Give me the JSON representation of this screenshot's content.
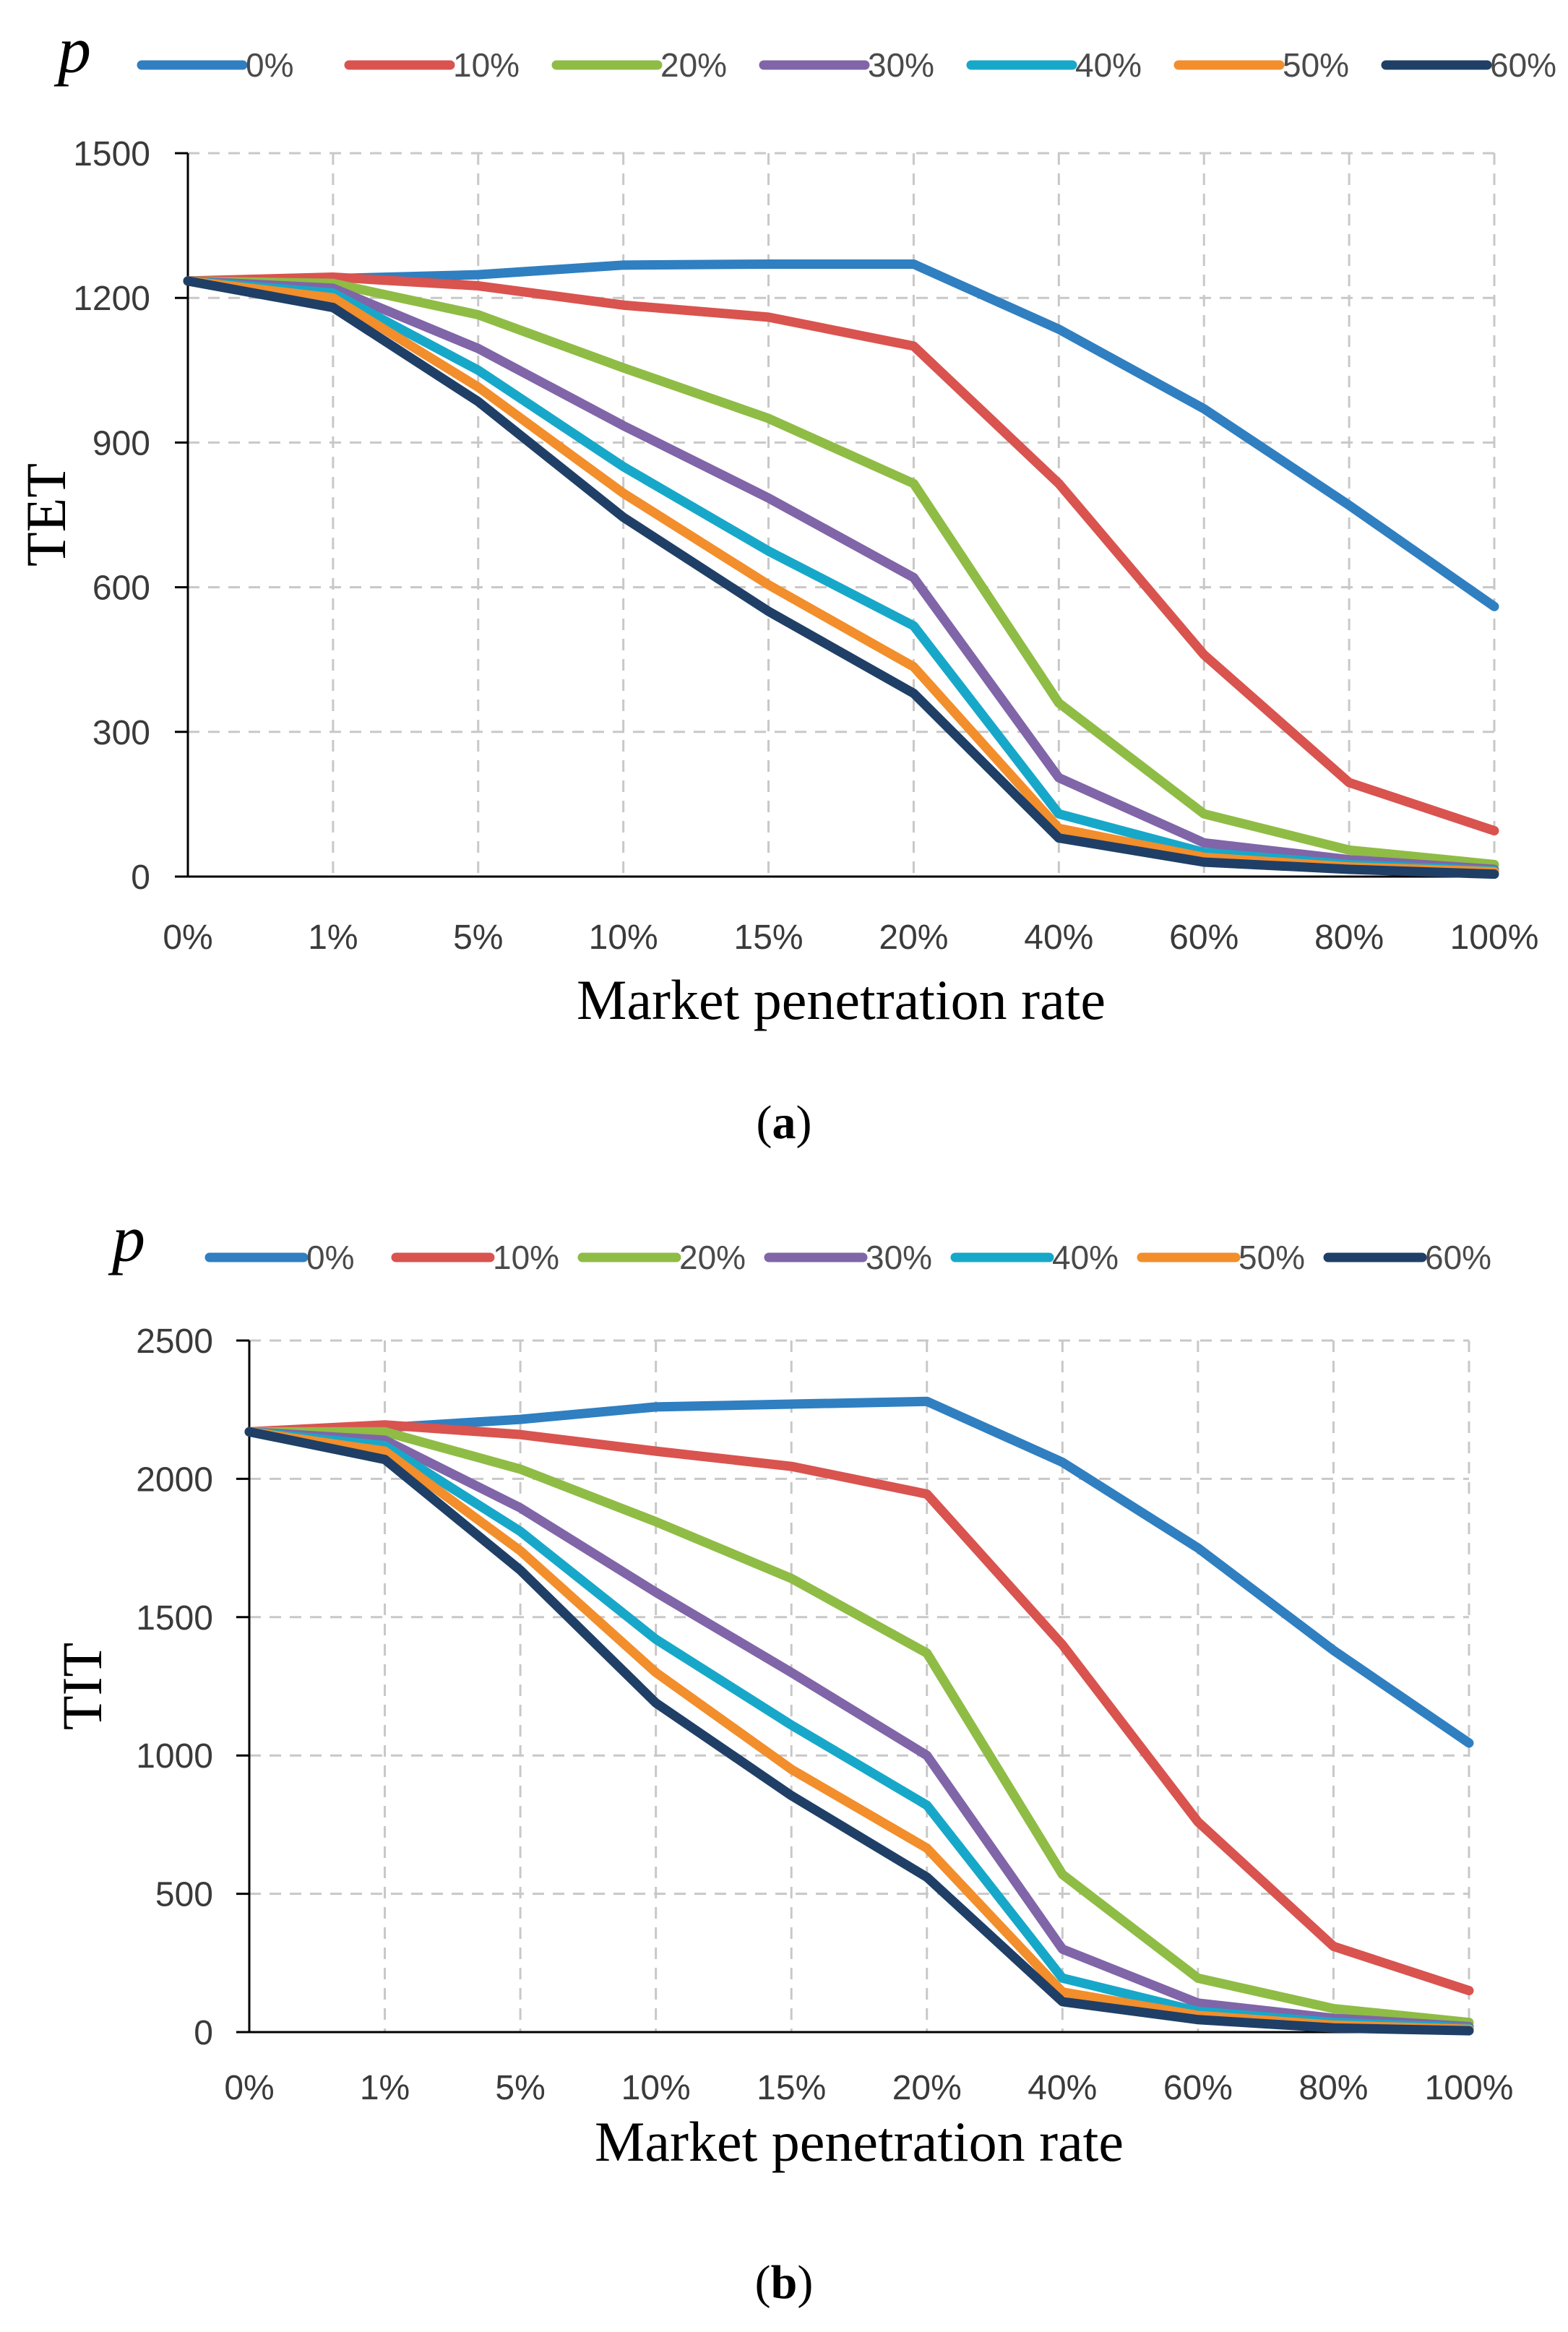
{
  "chart_data": [
    {
      "type": "line",
      "panel_caption": "a",
      "legend_title": "p",
      "xlabel": "Market penetration rate",
      "ylabel": "TET",
      "ylim": [
        0,
        1500
      ],
      "yticks": [
        0,
        300,
        600,
        900,
        1200,
        1500
      ],
      "categories": [
        "0%",
        "1%",
        "5%",
        "10%",
        "15%",
        "20%",
        "40%",
        "60%",
        "80%",
        "100%"
      ],
      "grid": true,
      "legend_position": "top",
      "series": [
        {
          "name": "0%",
          "color": "#2f7fc1",
          "values": [
            1235,
            1240,
            1248,
            1268,
            1270,
            1270,
            1135,
            970,
            770,
            560
          ]
        },
        {
          "name": "10%",
          "color": "#d9534f",
          "values": [
            1235,
            1243,
            1225,
            1185,
            1160,
            1100,
            815,
            460,
            195,
            95
          ]
        },
        {
          "name": "20%",
          "color": "#8fbc45",
          "values": [
            1235,
            1230,
            1165,
            1055,
            950,
            815,
            360,
            130,
            55,
            25
          ]
        },
        {
          "name": "30%",
          "color": "#8065a8",
          "values": [
            1235,
            1220,
            1095,
            935,
            785,
            620,
            205,
            70,
            35,
            15
          ]
        },
        {
          "name": "40%",
          "color": "#17a8c9",
          "values": [
            1235,
            1210,
            1050,
            850,
            675,
            520,
            130,
            50,
            25,
            12
          ]
        },
        {
          "name": "50%",
          "color": "#f28e2b",
          "values": [
            1235,
            1200,
            1015,
            795,
            605,
            435,
            100,
            40,
            20,
            10
          ]
        },
        {
          "name": "60%",
          "color": "#1f3f66",
          "values": [
            1235,
            1180,
            985,
            745,
            550,
            380,
            80,
            30,
            15,
            5
          ]
        }
      ]
    },
    {
      "type": "line",
      "panel_caption": "b",
      "legend_title": "p",
      "xlabel": "Market penetration rate",
      "ylabel": "TIT",
      "ylim": [
        0,
        2500
      ],
      "yticks": [
        0,
        500,
        1000,
        1500,
        2000,
        2500
      ],
      "categories": [
        "0%",
        "1%",
        "5%",
        "10%",
        "15%",
        "20%",
        "40%",
        "60%",
        "80%",
        "100%"
      ],
      "grid": true,
      "legend_position": "top",
      "series": [
        {
          "name": "0%",
          "color": "#2f7fc1",
          "values": [
            2170,
            2185,
            2215,
            2260,
            2270,
            2280,
            2060,
            1750,
            1380,
            1045
          ]
        },
        {
          "name": "10%",
          "color": "#d9534f",
          "values": [
            2170,
            2195,
            2160,
            2100,
            2045,
            1945,
            1400,
            760,
            310,
            150
          ]
        },
        {
          "name": "20%",
          "color": "#8fbc45",
          "values": [
            2170,
            2170,
            2035,
            1845,
            1640,
            1370,
            570,
            195,
            85,
            35
          ]
        },
        {
          "name": "30%",
          "color": "#8065a8",
          "values": [
            2170,
            2140,
            1895,
            1590,
            1300,
            1000,
            300,
            105,
            50,
            20
          ]
        },
        {
          "name": "40%",
          "color": "#17a8c9",
          "values": [
            2170,
            2120,
            1810,
            1420,
            1110,
            820,
            195,
            75,
            35,
            15
          ]
        },
        {
          "name": "50%",
          "color": "#f28e2b",
          "values": [
            2170,
            2100,
            1740,
            1300,
            950,
            665,
            145,
            60,
            25,
            10
          ]
        },
        {
          "name": "60%",
          "color": "#1f3f66",
          "values": [
            2170,
            2070,
            1670,
            1190,
            855,
            560,
            110,
            45,
            15,
            5
          ]
        }
      ]
    }
  ]
}
